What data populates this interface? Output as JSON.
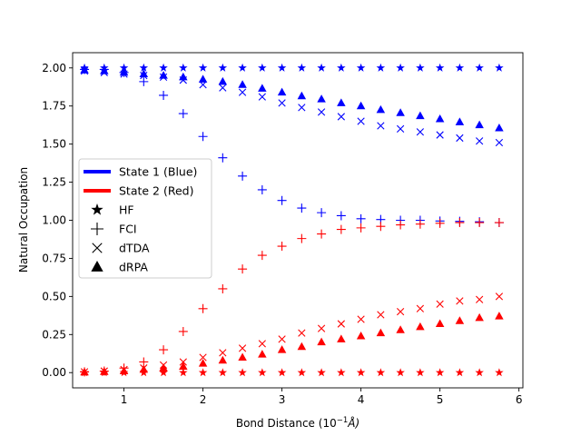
{
  "chart_data": {
    "type": "scatter",
    "xlabel": "Bond Distance (10",
    "xlabel_sup": "−1",
    "xlabel_unit": "Å)",
    "ylabel": "Natural Occupation",
    "xlim": [
      0.35,
      6.05
    ],
    "ylim": [
      -0.1,
      2.1
    ],
    "xticks": [
      1,
      2,
      3,
      4,
      5,
      6
    ],
    "yticks": [
      0.0,
      0.25,
      0.5,
      0.75,
      1.0,
      1.25,
      1.5,
      1.75,
      2.0
    ],
    "ytick_labels": [
      "0.00",
      "0.25",
      "0.50",
      "0.75",
      "1.00",
      "1.25",
      "1.50",
      "1.75",
      "2.00"
    ],
    "colors": {
      "blue": "#0000ff",
      "red": "#ff0000"
    },
    "x": [
      0.5,
      0.75,
      1.0,
      1.25,
      1.5,
      1.75,
      2.0,
      2.25,
      2.5,
      2.75,
      3.0,
      3.25,
      3.5,
      3.75,
      4.0,
      4.25,
      4.5,
      4.75,
      5.0,
      5.25,
      5.5,
      5.75
    ],
    "series": [
      {
        "state": "blue",
        "method": "HF",
        "values": [
          2.0,
          2.0,
          2.0,
          2.0,
          2.0,
          2.0,
          2.0,
          2.0,
          2.0,
          2.0,
          2.0,
          2.0,
          2.0,
          2.0,
          2.0,
          2.0,
          2.0,
          2.0,
          2.0,
          2.0,
          2.0,
          2.0
        ]
      },
      {
        "state": "blue",
        "method": "FCI",
        "values": [
          1.99,
          1.99,
          1.97,
          1.91,
          1.82,
          1.7,
          1.55,
          1.41,
          1.29,
          1.2,
          1.13,
          1.08,
          1.05,
          1.03,
          1.01,
          1.005,
          1.0,
          1.0,
          0.995,
          0.993,
          0.99,
          0.985
        ]
      },
      {
        "state": "blue",
        "method": "dTDA",
        "values": [
          1.98,
          1.97,
          1.96,
          1.95,
          1.94,
          1.92,
          1.89,
          1.87,
          1.84,
          1.81,
          1.77,
          1.74,
          1.71,
          1.68,
          1.65,
          1.62,
          1.6,
          1.58,
          1.56,
          1.54,
          1.52,
          1.51
        ]
      },
      {
        "state": "blue",
        "method": "dRPA",
        "values": [
          1.985,
          1.98,
          1.97,
          1.96,
          1.95,
          1.94,
          1.925,
          1.91,
          1.89,
          1.865,
          1.84,
          1.815,
          1.795,
          1.77,
          1.75,
          1.725,
          1.705,
          1.685,
          1.665,
          1.645,
          1.625,
          1.605
        ]
      },
      {
        "state": "red",
        "method": "HF",
        "values": [
          0.0,
          0.0,
          0.0,
          0.0,
          0.0,
          0.0,
          0.0,
          0.0,
          0.0,
          0.0,
          0.0,
          0.0,
          0.0,
          0.0,
          0.0,
          0.0,
          0.0,
          0.0,
          0.0,
          0.0,
          0.0,
          0.0
        ]
      },
      {
        "state": "red",
        "method": "FCI",
        "values": [
          0.005,
          0.01,
          0.03,
          0.07,
          0.15,
          0.27,
          0.42,
          0.55,
          0.68,
          0.77,
          0.83,
          0.88,
          0.91,
          0.94,
          0.95,
          0.96,
          0.97,
          0.975,
          0.98,
          0.985,
          0.985,
          0.985
        ]
      },
      {
        "state": "red",
        "method": "dTDA",
        "values": [
          0.005,
          0.01,
          0.02,
          0.03,
          0.05,
          0.07,
          0.1,
          0.13,
          0.16,
          0.19,
          0.22,
          0.26,
          0.29,
          0.32,
          0.35,
          0.38,
          0.4,
          0.42,
          0.45,
          0.47,
          0.48,
          0.5
        ]
      },
      {
        "state": "red",
        "method": "dRPA",
        "values": [
          0.003,
          0.006,
          0.01,
          0.02,
          0.03,
          0.04,
          0.06,
          0.08,
          0.1,
          0.12,
          0.15,
          0.17,
          0.2,
          0.22,
          0.24,
          0.26,
          0.28,
          0.3,
          0.32,
          0.34,
          0.36,
          0.37
        ]
      }
    ],
    "legend": {
      "placement": "center-left",
      "entries": [
        {
          "kind": "line",
          "color": "#0000ff",
          "label": "State 1 (Blue)"
        },
        {
          "kind": "line",
          "color": "#ff0000",
          "label": "State 2 (Red)"
        },
        {
          "kind": "marker",
          "marker": "star",
          "label": "HF"
        },
        {
          "kind": "marker",
          "marker": "plus",
          "label": "FCI"
        },
        {
          "kind": "marker",
          "marker": "x",
          "label": "dTDA"
        },
        {
          "kind": "marker",
          "marker": "triangle",
          "label": "dRPA"
        }
      ]
    }
  }
}
